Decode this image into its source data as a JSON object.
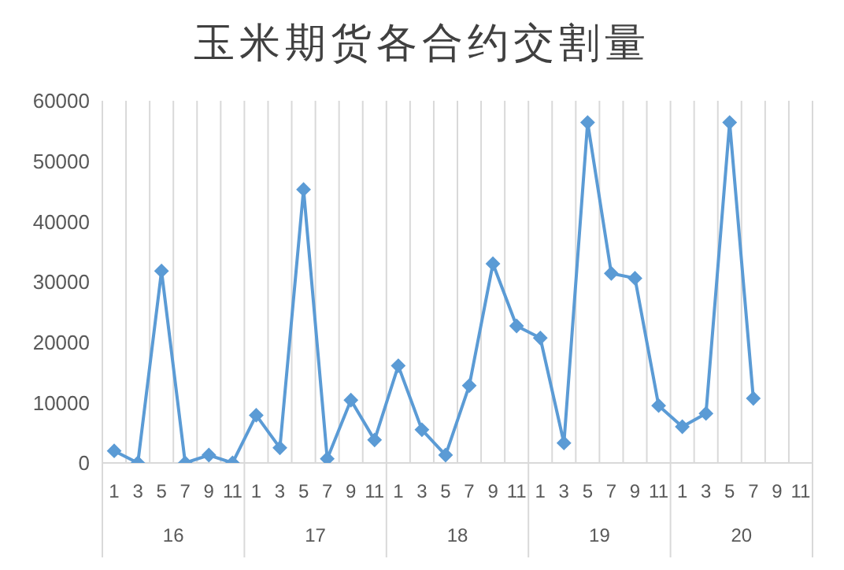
{
  "chart_data": {
    "type": "line",
    "title": "玉米期货各合约交割量",
    "categories": [
      "1",
      "3",
      "5",
      "7",
      "9",
      "11",
      "1",
      "3",
      "5",
      "7",
      "9",
      "11",
      "1",
      "3",
      "5",
      "7",
      "9",
      "11",
      "1",
      "3",
      "5",
      "7",
      "9",
      "11",
      "1",
      "3",
      "5",
      "7",
      "9",
      "11"
    ],
    "annotations": [
      "16",
      "17",
      "18",
      "19",
      "20"
    ],
    "series": [
      {
        "color": "#5b9bd5",
        "values": [
          2000,
          0,
          31800,
          0,
          1300,
          0,
          7900,
          2500,
          45300,
          700,
          10400,
          3800,
          16100,
          5500,
          1300,
          12800,
          33000,
          22700,
          20700,
          3300,
          56400,
          31400,
          30600,
          9500,
          6000,
          8200,
          56400,
          10700,
          null,
          null
        ]
      }
    ],
    "ylim": [
      0,
      60000
    ],
    "yticks": [
      0,
      10000,
      20000,
      30000,
      40000,
      50000,
      60000
    ],
    "grid": "x",
    "legend": false,
    "marker": "diamond",
    "line_style": "solid"
  }
}
